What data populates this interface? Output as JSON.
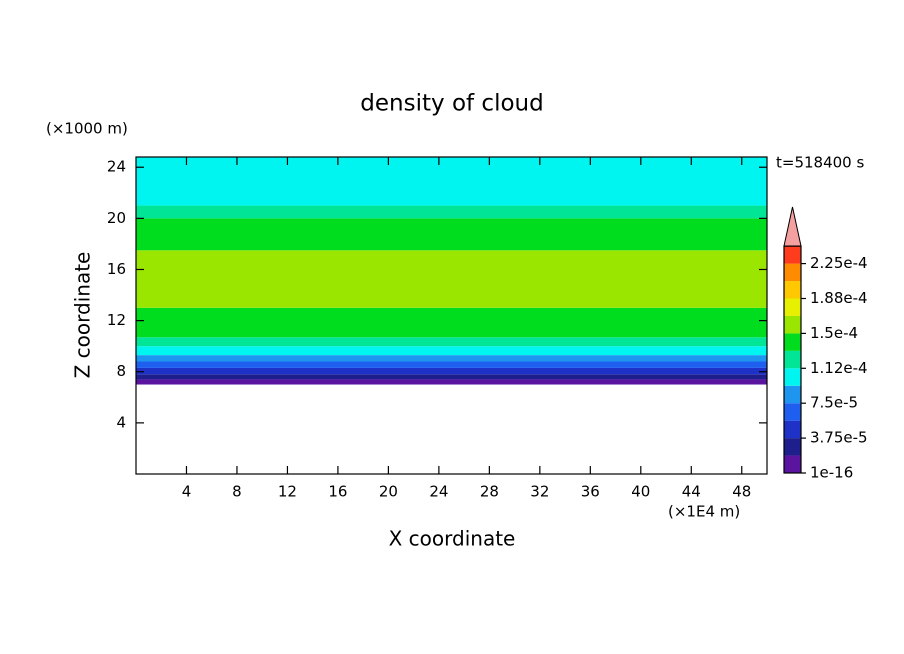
{
  "chart_data": {
    "type": "contour",
    "title": "density of cloud",
    "x_label": "X coordinate",
    "y_label": "Z coordinate",
    "x_unit": "(×1E4 m)",
    "y_unit": "(×1000 m)",
    "time_label": "t=518400 s",
    "xlim": [
      0,
      50
    ],
    "ylim": [
      0,
      24.8
    ],
    "xticks": [
      4,
      8,
      12,
      16,
      20,
      24,
      28,
      32,
      36,
      40,
      44,
      48
    ],
    "yticks": [
      4,
      8,
      12,
      16,
      20,
      24
    ],
    "z": [
      7,
      7.4,
      7.8,
      8.3,
      8.8,
      9.3,
      10,
      10.7,
      11.5,
      13,
      16,
      17.5,
      20,
      21,
      24.8
    ],
    "values": [
      1e-05,
      2.8e-05,
      4.7e-05,
      6.5e-05,
      8.4e-05,
      0.000103,
      0.000122,
      0.00014,
      0.00014,
      0.00016,
      0.000155,
      0.00014,
      0.000122,
      0.000103
    ],
    "levels": [
      1e-16,
      1.875e-05,
      3.75e-05,
      5.625e-05,
      7.5e-05,
      9.375e-05,
      0.0001125,
      0.00013125,
      0.00015,
      0.00016875,
      0.0001875,
      0.00020625,
      0.000225,
      0.00024375
    ],
    "colors": [
      "#5a14a0",
      "#1e1e8c",
      "#1e32c8",
      "#1e5ff0",
      "#1e96f0",
      "#00f5f0",
      "#00e696",
      "#00dc1e",
      "#9ae600",
      "#e6f000",
      "#ffc800",
      "#ff8c00",
      "#ff3c1e"
    ],
    "colorbar_ticks": [
      {
        "value": 1e-16,
        "label": "1e-16"
      },
      {
        "value": 3.75e-05,
        "label": "3.75e-5"
      },
      {
        "value": 7.5e-05,
        "label": "7.5e-5"
      },
      {
        "value": 0.0001125,
        "label": "1.12e-4"
      },
      {
        "value": 0.00015,
        "label": "1.5e-4"
      },
      {
        "value": 0.0001875,
        "label": "1.88e-4"
      },
      {
        "value": 0.000225,
        "label": "2.25e-4"
      }
    ]
  }
}
